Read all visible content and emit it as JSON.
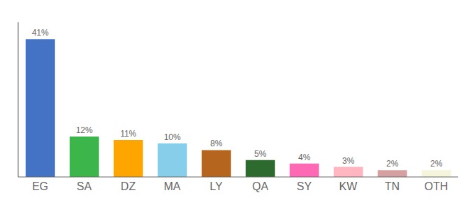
{
  "chart_data": {
    "type": "bar",
    "categories": [
      "EG",
      "SA",
      "DZ",
      "MA",
      "LY",
      "QA",
      "SY",
      "KW",
      "TN",
      "OTH"
    ],
    "values": [
      41,
      12,
      11,
      10,
      8,
      5,
      4,
      3,
      2,
      2
    ],
    "value_labels": [
      "41%",
      "12%",
      "11%",
      "10%",
      "8%",
      "5%",
      "4%",
      "3%",
      "2%",
      "2%"
    ],
    "colors": [
      "#4472c4",
      "#3cb54a",
      "#ffa500",
      "#87ceeb",
      "#b5651d",
      "#2d6a2d",
      "#ff69b4",
      "#ffb6c1",
      "#d4a0a0",
      "#f5f5dc"
    ],
    "ylim": [
      0,
      46
    ],
    "data_labels": true,
    "tick_labels": "x",
    "grid": false
  }
}
